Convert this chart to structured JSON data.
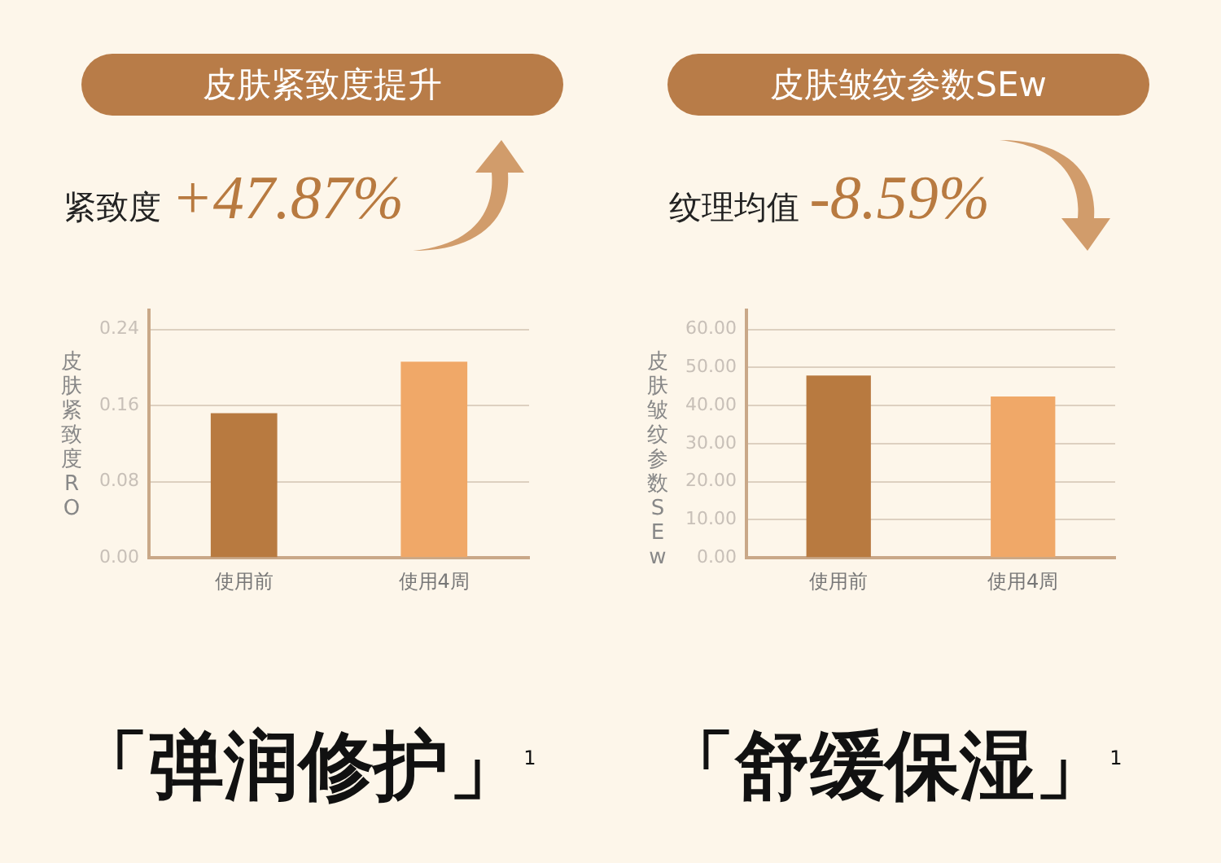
{
  "chart_data": [
    {
      "type": "bar",
      "title": "皮肤紧致度提升",
      "ylabel": "皮肤紧致度RO",
      "categories": [
        "使用前",
        "使用4周"
      ],
      "values": [
        0.152,
        0.206
      ],
      "colors": [
        "#b87a40",
        "#f0a868"
      ],
      "ylim": [
        0,
        0.26
      ],
      "yticks": [
        {
          "value": 0,
          "label": "0.00"
        },
        {
          "value": 0.08,
          "label": "0.08"
        },
        {
          "value": 0.16,
          "label": "0.16"
        },
        {
          "value": 0.24,
          "label": "0.24"
        }
      ],
      "grid": "y",
      "legend": false,
      "annotations": [
        "紧致度 +47.87%",
        "「弹润修护」$^{1}$"
      ]
    },
    {
      "type": "bar",
      "title": "皮肤皱纹参数SEw",
      "ylabel": "皮肤皱纹参数SEw",
      "categories": [
        "使用前",
        "使用4周"
      ],
      "values": [
        47.9,
        42.4
      ],
      "colors": [
        "#b87a40",
        "#f0a868"
      ],
      "ylim": [
        0,
        65
      ],
      "yticks": [
        {
          "value": 0,
          "label": "0.00"
        },
        {
          "value": 10,
          "label": "10.00"
        },
        {
          "value": 20,
          "label": "20.00"
        },
        {
          "value": 30,
          "label": "30.00"
        },
        {
          "value": 40,
          "label": "40.00"
        },
        {
          "value": 50,
          "label": "50.00"
        },
        {
          "value": 60,
          "label": "60.00"
        }
      ],
      "grid": "y",
      "legend": false,
      "annotations": [
        "纹理均值 -8.59%",
        "「舒缓保湿」$^{1}$"
      ]
    }
  ]
}
